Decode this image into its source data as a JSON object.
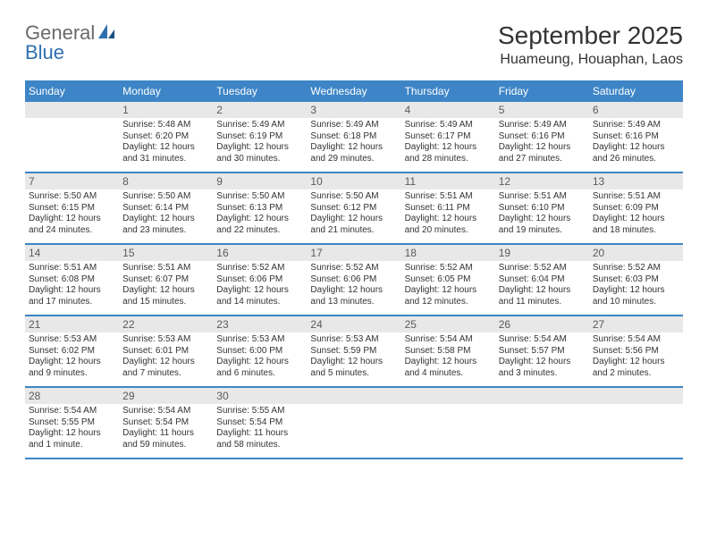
{
  "logo": {
    "text1": "General",
    "text2": "Blue"
  },
  "title": "September 2025",
  "location": "Huameung, Houaphan, Laos",
  "colors": {
    "header_bg": "#3d85c6",
    "header_text": "#ffffff",
    "daynum_bg": "#e8e8e8",
    "daynum_text": "#5a5a5a",
    "body_text": "#333333",
    "divider": "#3d85c6",
    "logo_gray": "#6a6a6a",
    "logo_blue": "#2f6fb0"
  },
  "day_names": [
    "Sunday",
    "Monday",
    "Tuesday",
    "Wednesday",
    "Thursday",
    "Friday",
    "Saturday"
  ],
  "weeks": [
    [
      {
        "n": "",
        "sunrise": "",
        "sunset": "",
        "daylight": ""
      },
      {
        "n": "1",
        "sunrise": "Sunrise: 5:48 AM",
        "sunset": "Sunset: 6:20 PM",
        "daylight": "Daylight: 12 hours and 31 minutes."
      },
      {
        "n": "2",
        "sunrise": "Sunrise: 5:49 AM",
        "sunset": "Sunset: 6:19 PM",
        "daylight": "Daylight: 12 hours and 30 minutes."
      },
      {
        "n": "3",
        "sunrise": "Sunrise: 5:49 AM",
        "sunset": "Sunset: 6:18 PM",
        "daylight": "Daylight: 12 hours and 29 minutes."
      },
      {
        "n": "4",
        "sunrise": "Sunrise: 5:49 AM",
        "sunset": "Sunset: 6:17 PM",
        "daylight": "Daylight: 12 hours and 28 minutes."
      },
      {
        "n": "5",
        "sunrise": "Sunrise: 5:49 AM",
        "sunset": "Sunset: 6:16 PM",
        "daylight": "Daylight: 12 hours and 27 minutes."
      },
      {
        "n": "6",
        "sunrise": "Sunrise: 5:49 AM",
        "sunset": "Sunset: 6:16 PM",
        "daylight": "Daylight: 12 hours and 26 minutes."
      }
    ],
    [
      {
        "n": "7",
        "sunrise": "Sunrise: 5:50 AM",
        "sunset": "Sunset: 6:15 PM",
        "daylight": "Daylight: 12 hours and 24 minutes."
      },
      {
        "n": "8",
        "sunrise": "Sunrise: 5:50 AM",
        "sunset": "Sunset: 6:14 PM",
        "daylight": "Daylight: 12 hours and 23 minutes."
      },
      {
        "n": "9",
        "sunrise": "Sunrise: 5:50 AM",
        "sunset": "Sunset: 6:13 PM",
        "daylight": "Daylight: 12 hours and 22 minutes."
      },
      {
        "n": "10",
        "sunrise": "Sunrise: 5:50 AM",
        "sunset": "Sunset: 6:12 PM",
        "daylight": "Daylight: 12 hours and 21 minutes."
      },
      {
        "n": "11",
        "sunrise": "Sunrise: 5:51 AM",
        "sunset": "Sunset: 6:11 PM",
        "daylight": "Daylight: 12 hours and 20 minutes."
      },
      {
        "n": "12",
        "sunrise": "Sunrise: 5:51 AM",
        "sunset": "Sunset: 6:10 PM",
        "daylight": "Daylight: 12 hours and 19 minutes."
      },
      {
        "n": "13",
        "sunrise": "Sunrise: 5:51 AM",
        "sunset": "Sunset: 6:09 PM",
        "daylight": "Daylight: 12 hours and 18 minutes."
      }
    ],
    [
      {
        "n": "14",
        "sunrise": "Sunrise: 5:51 AM",
        "sunset": "Sunset: 6:08 PM",
        "daylight": "Daylight: 12 hours and 17 minutes."
      },
      {
        "n": "15",
        "sunrise": "Sunrise: 5:51 AM",
        "sunset": "Sunset: 6:07 PM",
        "daylight": "Daylight: 12 hours and 15 minutes."
      },
      {
        "n": "16",
        "sunrise": "Sunrise: 5:52 AM",
        "sunset": "Sunset: 6:06 PM",
        "daylight": "Daylight: 12 hours and 14 minutes."
      },
      {
        "n": "17",
        "sunrise": "Sunrise: 5:52 AM",
        "sunset": "Sunset: 6:06 PM",
        "daylight": "Daylight: 12 hours and 13 minutes."
      },
      {
        "n": "18",
        "sunrise": "Sunrise: 5:52 AM",
        "sunset": "Sunset: 6:05 PM",
        "daylight": "Daylight: 12 hours and 12 minutes."
      },
      {
        "n": "19",
        "sunrise": "Sunrise: 5:52 AM",
        "sunset": "Sunset: 6:04 PM",
        "daylight": "Daylight: 12 hours and 11 minutes."
      },
      {
        "n": "20",
        "sunrise": "Sunrise: 5:52 AM",
        "sunset": "Sunset: 6:03 PM",
        "daylight": "Daylight: 12 hours and 10 minutes."
      }
    ],
    [
      {
        "n": "21",
        "sunrise": "Sunrise: 5:53 AM",
        "sunset": "Sunset: 6:02 PM",
        "daylight": "Daylight: 12 hours and 9 minutes."
      },
      {
        "n": "22",
        "sunrise": "Sunrise: 5:53 AM",
        "sunset": "Sunset: 6:01 PM",
        "daylight": "Daylight: 12 hours and 7 minutes."
      },
      {
        "n": "23",
        "sunrise": "Sunrise: 5:53 AM",
        "sunset": "Sunset: 6:00 PM",
        "daylight": "Daylight: 12 hours and 6 minutes."
      },
      {
        "n": "24",
        "sunrise": "Sunrise: 5:53 AM",
        "sunset": "Sunset: 5:59 PM",
        "daylight": "Daylight: 12 hours and 5 minutes."
      },
      {
        "n": "25",
        "sunrise": "Sunrise: 5:54 AM",
        "sunset": "Sunset: 5:58 PM",
        "daylight": "Daylight: 12 hours and 4 minutes."
      },
      {
        "n": "26",
        "sunrise": "Sunrise: 5:54 AM",
        "sunset": "Sunset: 5:57 PM",
        "daylight": "Daylight: 12 hours and 3 minutes."
      },
      {
        "n": "27",
        "sunrise": "Sunrise: 5:54 AM",
        "sunset": "Sunset: 5:56 PM",
        "daylight": "Daylight: 12 hours and 2 minutes."
      }
    ],
    [
      {
        "n": "28",
        "sunrise": "Sunrise: 5:54 AM",
        "sunset": "Sunset: 5:55 PM",
        "daylight": "Daylight: 12 hours and 1 minute."
      },
      {
        "n": "29",
        "sunrise": "Sunrise: 5:54 AM",
        "sunset": "Sunset: 5:54 PM",
        "daylight": "Daylight: 11 hours and 59 minutes."
      },
      {
        "n": "30",
        "sunrise": "Sunrise: 5:55 AM",
        "sunset": "Sunset: 5:54 PM",
        "daylight": "Daylight: 11 hours and 58 minutes."
      },
      {
        "n": "",
        "sunrise": "",
        "sunset": "",
        "daylight": ""
      },
      {
        "n": "",
        "sunrise": "",
        "sunset": "",
        "daylight": ""
      },
      {
        "n": "",
        "sunrise": "",
        "sunset": "",
        "daylight": ""
      },
      {
        "n": "",
        "sunrise": "",
        "sunset": "",
        "daylight": ""
      }
    ]
  ]
}
